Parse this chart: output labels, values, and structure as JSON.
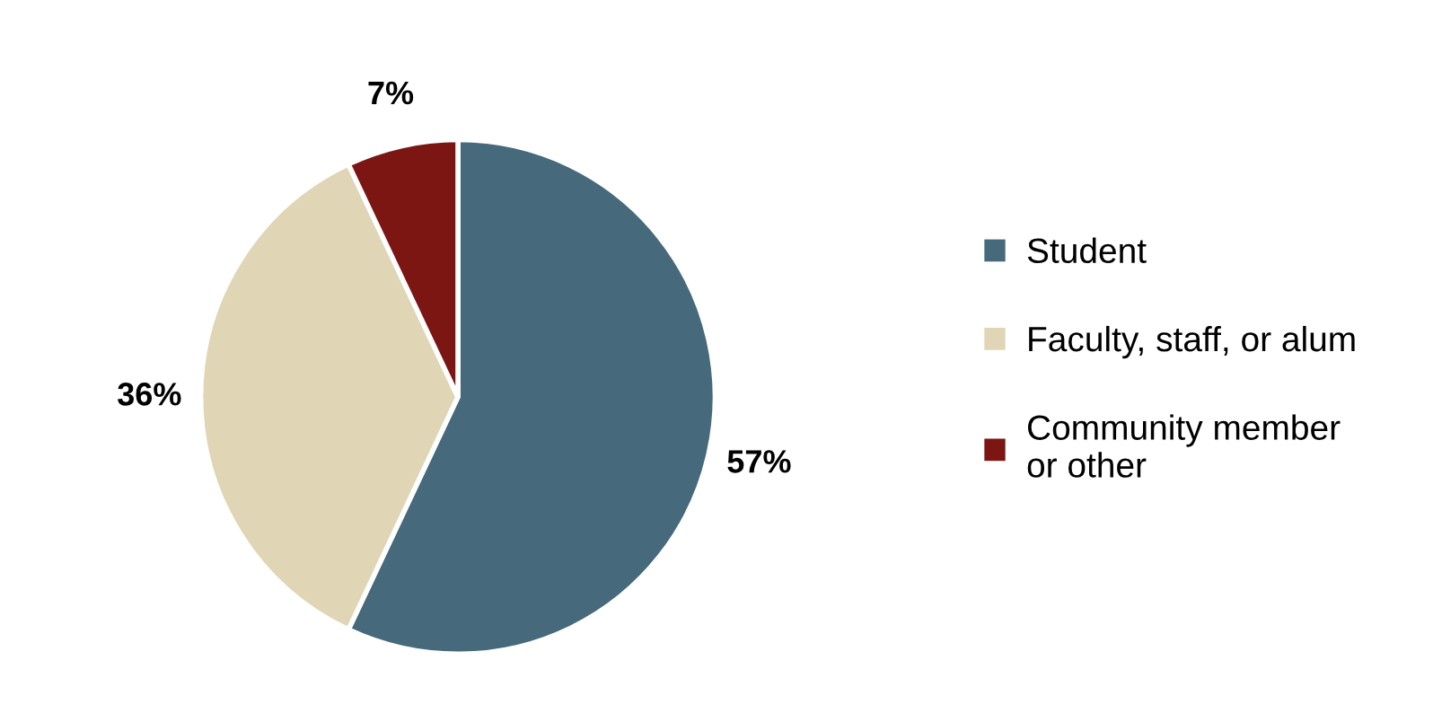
{
  "chart_data": {
    "type": "pie",
    "categories": [
      "Student",
      "Faculty, staff, or alum",
      "Community member\nor other"
    ],
    "values": [
      57,
      36,
      7
    ],
    "colors": [
      "#46697c",
      "#e0d6b5",
      "#7b1613"
    ],
    "value_labels": [
      "57%",
      "36%",
      "7%"
    ],
    "legend": "right"
  }
}
